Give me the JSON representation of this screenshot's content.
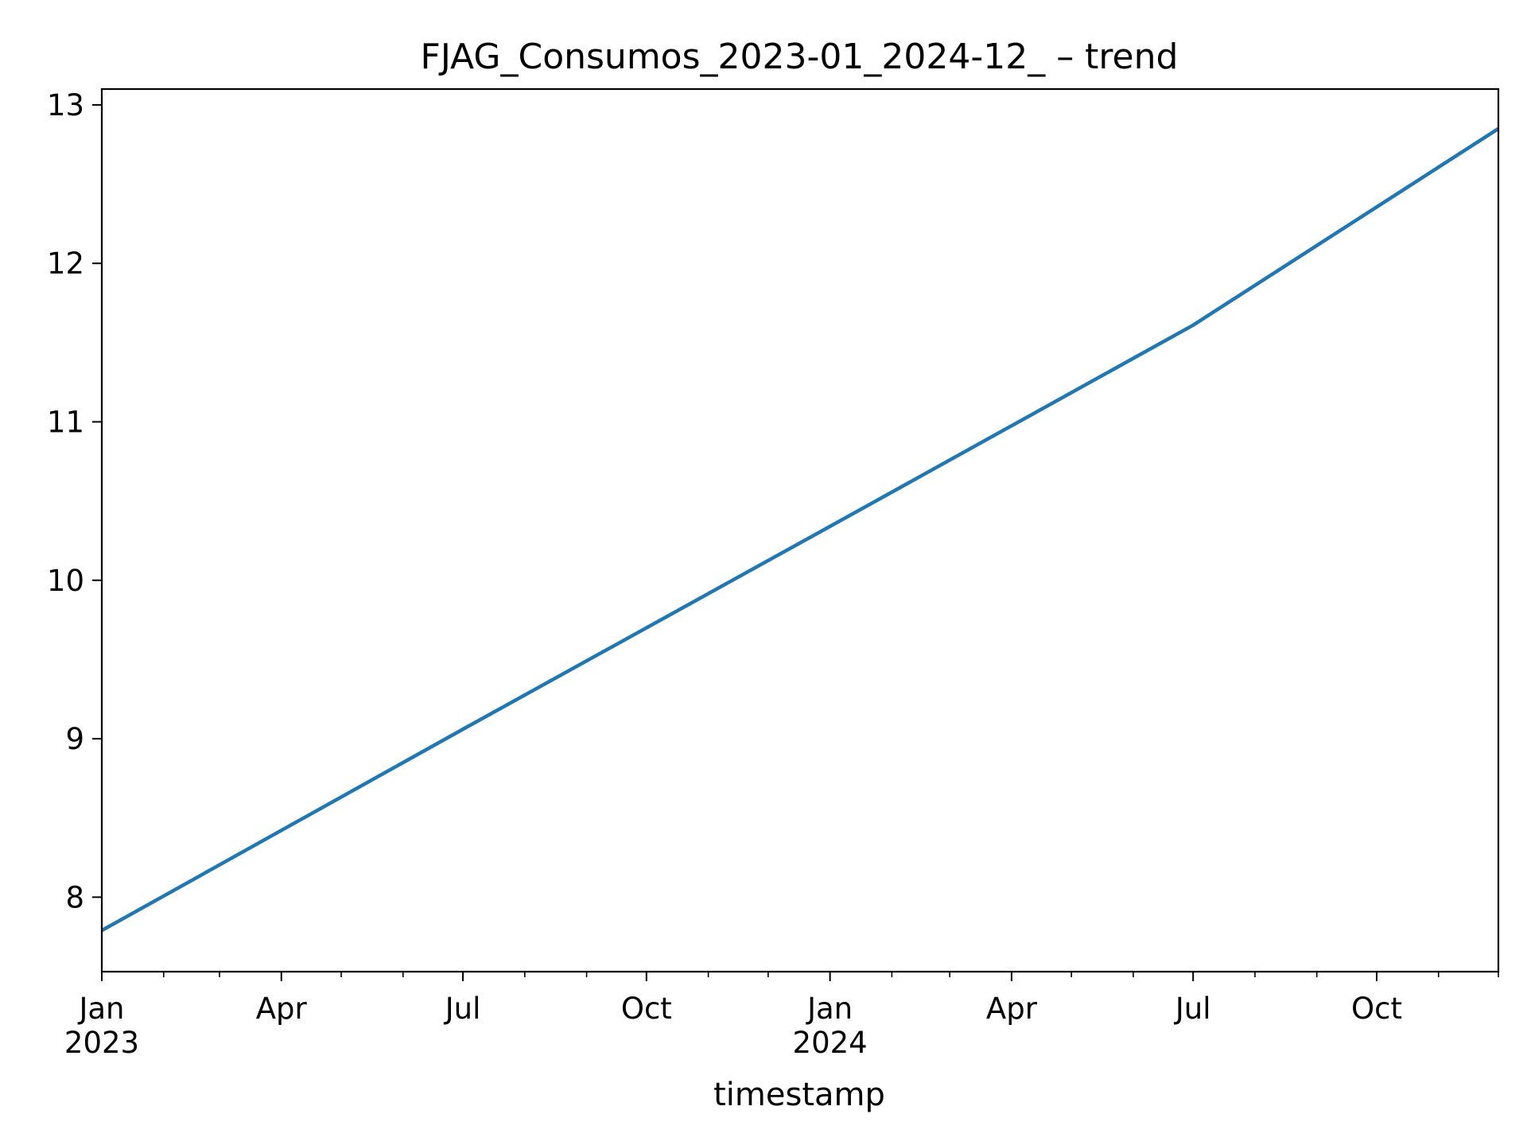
{
  "chart_data": {
    "type": "line",
    "title": "FJAG_Consumos_2023-01_2024-12_ – trend",
    "xlabel": "timestamp",
    "ylabel": "",
    "grid": false,
    "legend": "none",
    "xlim": [
      "2023-01-01",
      "2024-12-01"
    ],
    "ylim": [
      7.53,
      13.1
    ],
    "x_ticks": [
      {
        "date": "2023-01-01",
        "label": "Jan",
        "sublabel": "2023"
      },
      {
        "date": "2023-04-01",
        "label": "Apr",
        "sublabel": ""
      },
      {
        "date": "2023-07-01",
        "label": "Jul",
        "sublabel": ""
      },
      {
        "date": "2023-10-01",
        "label": "Oct",
        "sublabel": ""
      },
      {
        "date": "2024-01-01",
        "label": "Jan",
        "sublabel": "2024"
      },
      {
        "date": "2024-04-01",
        "label": "Apr",
        "sublabel": ""
      },
      {
        "date": "2024-07-01",
        "label": "Jul",
        "sublabel": ""
      },
      {
        "date": "2024-10-01",
        "label": "Oct",
        "sublabel": ""
      }
    ],
    "x_minor_ticks": [
      "2023-02-01",
      "2023-03-01",
      "2023-05-01",
      "2023-06-01",
      "2023-08-01",
      "2023-09-01",
      "2023-11-01",
      "2023-12-01",
      "2024-02-01",
      "2024-03-01",
      "2024-05-01",
      "2024-06-01",
      "2024-08-01",
      "2024-09-01",
      "2024-11-01",
      "2024-12-01"
    ],
    "y_ticks": [
      8,
      9,
      10,
      11,
      12,
      13
    ],
    "series": [
      {
        "color": "#1f77b4",
        "x": [
          "2023-01-01",
          "2023-07-01",
          "2024-01-01",
          "2024-07-01",
          "2024-12-01"
        ],
        "values": [
          7.79,
          9.06,
          10.34,
          11.61,
          12.85
        ]
      }
    ]
  }
}
